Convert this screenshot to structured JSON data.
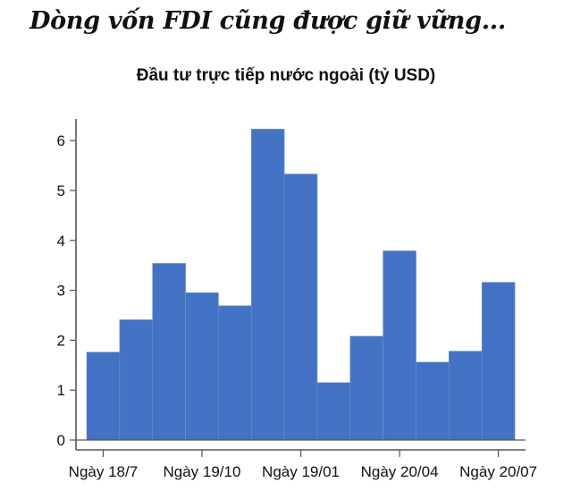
{
  "headline": "Dòng vốn FDI cũng được giữ vững...",
  "chart_data": {
    "type": "bar",
    "title": "Đầu tư trực tiếp nước ngoài (tỷ USD)",
    "xlabel": "",
    "ylabel": "",
    "ylim": [
      0,
      6.4
    ],
    "yticks": [
      0,
      1,
      2,
      3,
      4,
      5,
      6
    ],
    "xtick_labels": [
      "Ngày 18/7",
      "Ngày 19/10",
      "Ngày 19/01",
      "Ngày 20/04",
      "Ngày 20/07"
    ],
    "xtick_bar_positions": [
      0.5,
      3.5,
      6.5,
      9.5,
      12.5
    ],
    "grid": false,
    "legend": null,
    "bar_color": "#4472C4",
    "values": [
      1.76,
      2.41,
      3.54,
      2.95,
      2.69,
      6.23,
      5.33,
      1.15,
      2.08,
      3.79,
      1.56,
      1.78,
      3.16
    ]
  }
}
